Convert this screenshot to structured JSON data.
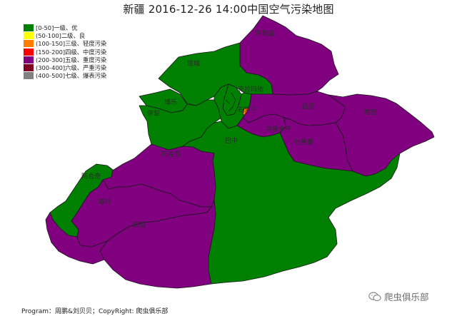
{
  "title": "新疆 2016-12-26 14:00中国空气污染地图",
  "legend": [
    {
      "label": "[0-50]一级、优",
      "color": "#008000"
    },
    {
      "label": "(50-100]二级、良",
      "color": "#ffff00"
    },
    {
      "label": "(100-150]三级、轻度污染",
      "color": "#ff7e00"
    },
    {
      "label": "(150-200]四级、中度污染",
      "color": "#ff0000"
    },
    {
      "label": "(200-300]五级、重度污染",
      "color": "#800080"
    },
    {
      "label": "(300-400]六级、严重污染",
      "color": "#7e0023"
    },
    {
      "label": "(400-500]七级、爆表污染",
      "color": "#808080"
    }
  ],
  "regions": [
    {
      "name": "阿勒泰",
      "level": "(200-300]五级、重度污染"
    },
    {
      "name": "塔城",
      "level": "[0-50]一级、优"
    },
    {
      "name": "博乐",
      "level": "[0-50]一级、优"
    },
    {
      "name": "伊犁",
      "level": "[0-50]一级、优"
    },
    {
      "name": "克拉玛依",
      "level": "[0-50]一级、优"
    },
    {
      "name": "石河子",
      "level": "(100-150]三级、轻度污染"
    },
    {
      "name": "昌吉",
      "level": "(200-300]五级、重度污染"
    },
    {
      "name": "乌鲁木齐",
      "level": "(200-300]五级、重度污染"
    },
    {
      "name": "吐鲁番",
      "level": "(200-300]五级、重度污染"
    },
    {
      "name": "哈密",
      "level": "(200-300]五级、重度污染"
    },
    {
      "name": "巴中",
      "level": "[0-50]一级、优"
    },
    {
      "name": "阿克苏",
      "level": "(200-300]五级、重度污染"
    },
    {
      "name": "阿合奇",
      "level": "[0-50]一级、优"
    },
    {
      "name": "喀什",
      "level": "(200-300]五级、重度污染"
    },
    {
      "name": "和田",
      "level": "(200-300]五级、重度污染"
    }
  ],
  "footer": "Program：周鹏&刘贝贝；CopyRight: 爬虫俱乐部",
  "watermark": "爬虫俱乐部",
  "colors": {
    "good": "#008000",
    "heavy": "#800080",
    "light": "#ff7e00",
    "border": "#1a1a1a"
  }
}
